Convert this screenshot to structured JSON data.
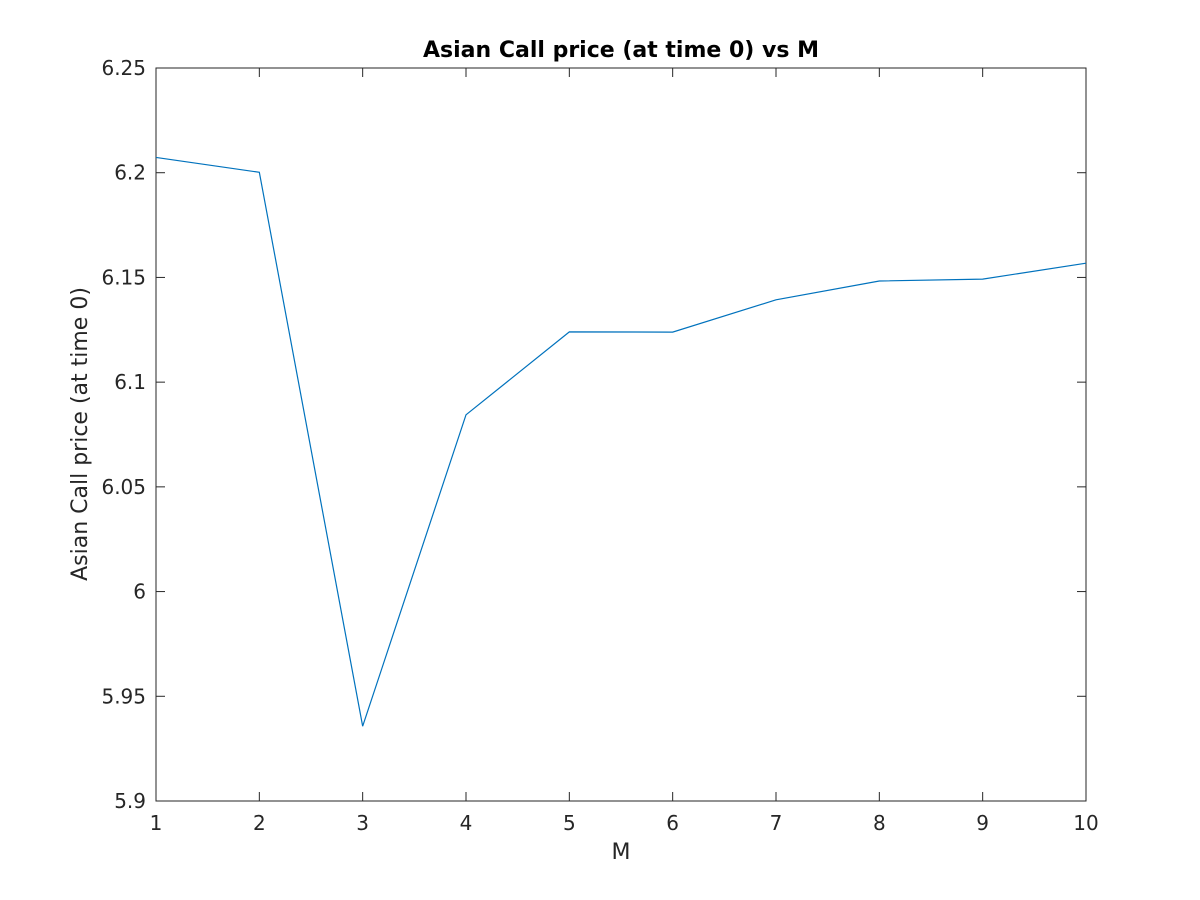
{
  "chart_data": {
    "type": "line",
    "title": "Asian Call price (at time 0) vs M",
    "xlabel": "M",
    "ylabel": "Asian Call price (at time 0)",
    "xlim": [
      1,
      10
    ],
    "ylim": [
      5.9,
      6.25
    ],
    "xticks": [
      "1",
      "2",
      "3",
      "4",
      "5",
      "6",
      "7",
      "8",
      "9",
      "10"
    ],
    "yticks": [
      "5.9",
      "5.95",
      "6",
      "6.05",
      "6.1",
      "6.15",
      "6.2",
      "6.25"
    ],
    "grid": false,
    "series": [
      {
        "x": [
          1,
          2,
          3,
          4,
          5,
          6,
          7,
          8,
          9,
          10
        ],
        "values": [
          6.2073,
          6.2002,
          5.9357,
          6.0844,
          6.124,
          6.1239,
          6.1393,
          6.1483,
          6.1492,
          6.1568
        ],
        "color": "#0072BD"
      }
    ]
  }
}
